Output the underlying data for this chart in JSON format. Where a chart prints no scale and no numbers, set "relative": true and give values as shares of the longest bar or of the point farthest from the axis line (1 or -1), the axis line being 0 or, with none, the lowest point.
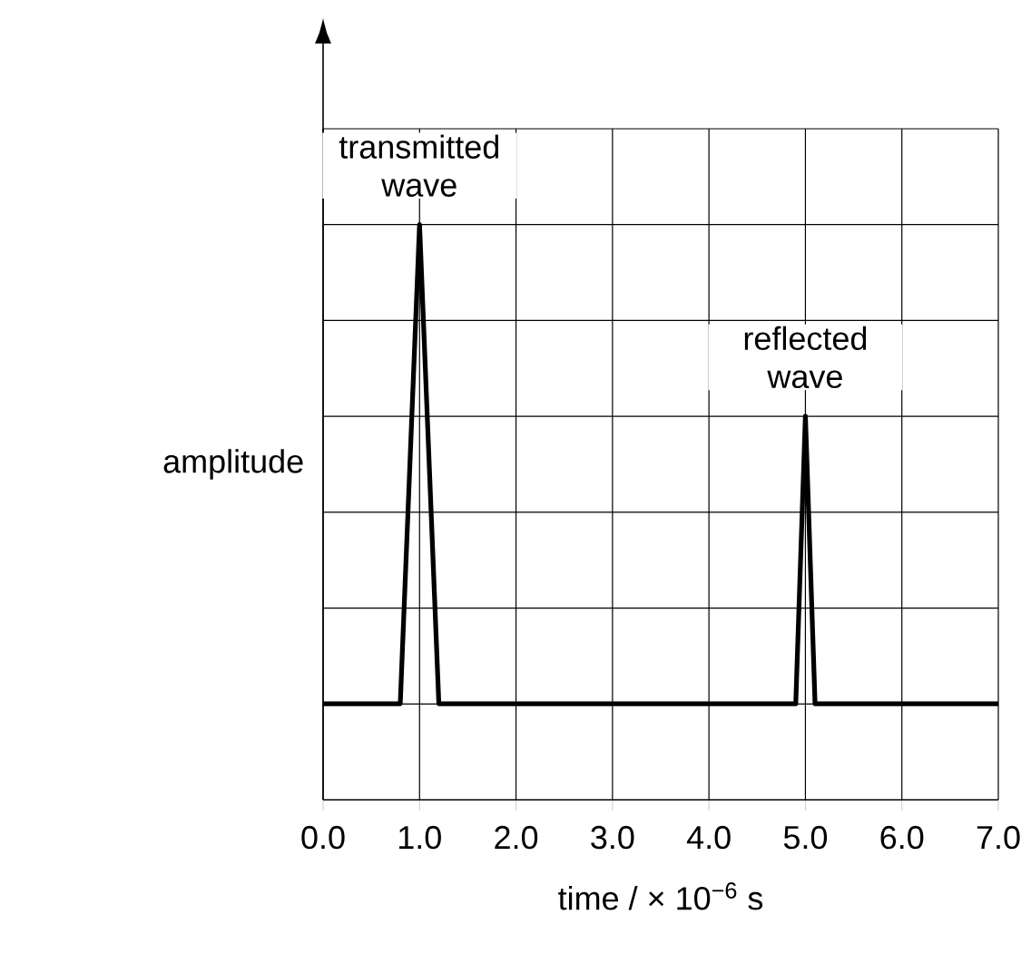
{
  "chart_data": {
    "type": "line",
    "relative": true,
    "x": [
      0,
      0.8,
      1.0,
      1.2,
      4.9,
      5.0,
      5.1,
      7.0
    ],
    "series": [
      {
        "color": "#000000",
        "values": [
          0.167,
          0.167,
          1,
          0.167,
          0.167,
          0.667,
          0.167,
          0.167
        ]
      }
    ],
    "xlim": [
      0,
      7
    ],
    "xticks": [
      {
        "value": 0,
        "label": "0.0"
      },
      {
        "value": 1,
        "label": "1.0"
      },
      {
        "value": 2,
        "label": "2.0"
      },
      {
        "value": 3,
        "label": "3.0"
      },
      {
        "value": 4,
        "label": "4.0"
      },
      {
        "value": 5,
        "label": "5.0"
      },
      {
        "value": 6,
        "label": "6.0"
      },
      {
        "value": 7,
        "label": "7.0"
      }
    ],
    "xlabel": "time / × 10$^{−6}$ s",
    "ylabel": "amplitude",
    "annotations": [
      {
        "text": "transmitted wave",
        "x": 1.0,
        "y": 1
      },
      {
        "text": "reflected wave",
        "x": 5.0,
        "y": 0.667
      }
    ],
    "grid": true,
    "tick_labels": "x"
  }
}
